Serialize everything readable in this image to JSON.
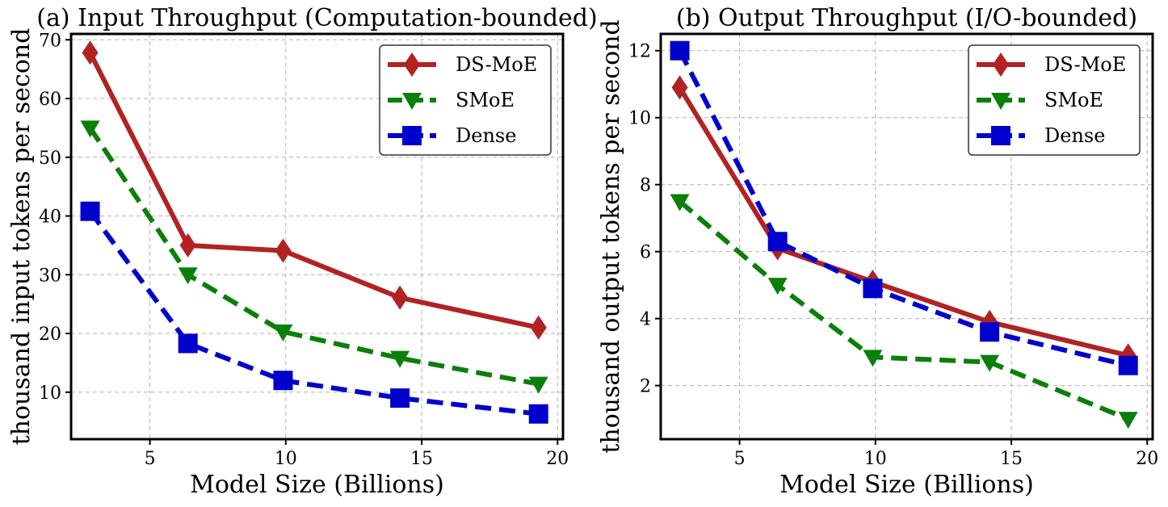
{
  "chart_data": [
    {
      "type": "line",
      "title": "(a) Input Throughput (Computation-bounded)",
      "xlabel": "Model Size (Billions)",
      "ylabel": "thousand input tokens per second",
      "xlim": [
        2.1,
        20.2
      ],
      "ylim": [
        2,
        71
      ],
      "xticks": [
        5,
        10,
        15,
        20
      ],
      "yticks": [
        10,
        20,
        30,
        40,
        50,
        60,
        70
      ],
      "grid": true,
      "legend_position": "top-right",
      "x": [
        2.8,
        6.4,
        9.9,
        14.2,
        19.3
      ],
      "series": [
        {
          "name": "DS-MoE",
          "values": [
            67.8,
            35.0,
            34.1,
            26.1,
            21.0
          ],
          "color": "#b22222",
          "marker": "diamond",
          "dashed": false
        },
        {
          "name": "SMoE",
          "values": [
            55.0,
            30.0,
            20.3,
            15.8,
            11.4
          ],
          "color": "#0a800a",
          "marker": "triangle-down",
          "dashed": true
        },
        {
          "name": "Dense",
          "values": [
            40.8,
            18.3,
            12.0,
            9.0,
            6.3
          ],
          "color": "#0000cc",
          "marker": "square",
          "dashed": true
        }
      ]
    },
    {
      "type": "line",
      "title": "(b) Output Throughput (I/O-bounded)",
      "xlabel": "Model Size (Billions)",
      "ylabel": "thousand output tokens per second",
      "xlim": [
        2.1,
        20.2
      ],
      "ylim": [
        0.4,
        12.5
      ],
      "xticks": [
        5,
        10,
        15,
        20
      ],
      "yticks": [
        2,
        4,
        6,
        8,
        10,
        12
      ],
      "grid": true,
      "legend_position": "top-right",
      "x": [
        2.8,
        6.4,
        9.9,
        14.2,
        19.3
      ],
      "series": [
        {
          "name": "DS-MoE",
          "values": [
            10.9,
            6.1,
            5.1,
            3.9,
            2.9
          ],
          "color": "#b22222",
          "marker": "diamond",
          "dashed": false
        },
        {
          "name": "SMoE",
          "values": [
            7.5,
            5.0,
            2.85,
            2.7,
            1.0
          ],
          "color": "#0a800a",
          "marker": "triangle-down",
          "dashed": true
        },
        {
          "name": "Dense",
          "values": [
            12.0,
            6.3,
            4.9,
            3.6,
            2.6
          ],
          "color": "#0000cc",
          "marker": "square",
          "dashed": true
        }
      ]
    }
  ]
}
